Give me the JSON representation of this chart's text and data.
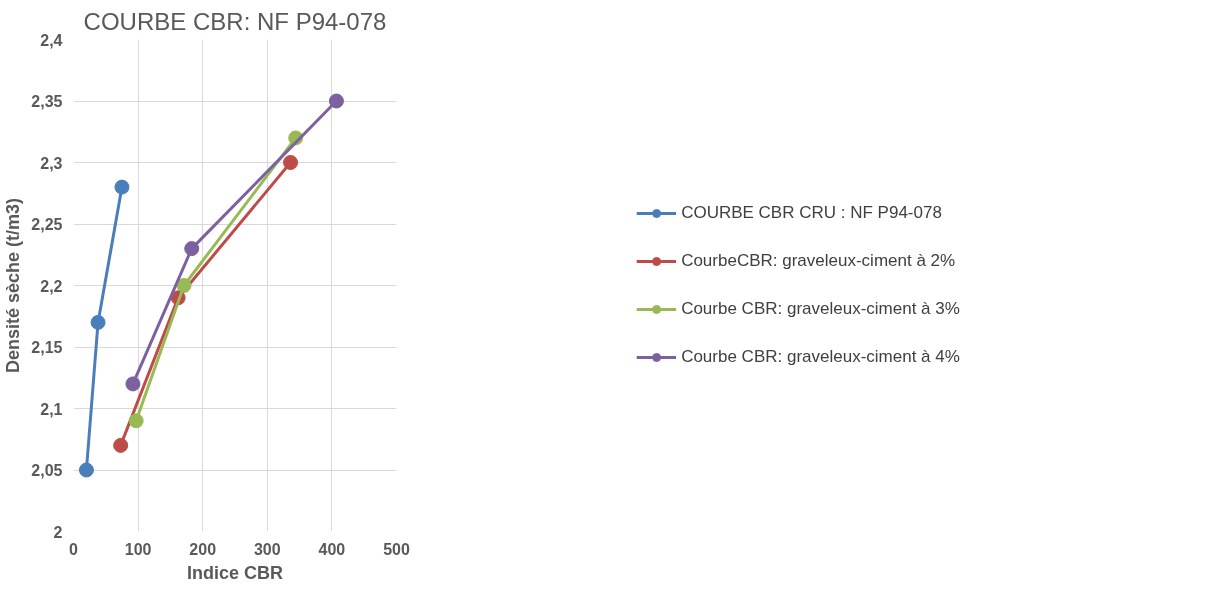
{
  "chart_data": {
    "type": "line",
    "title": "COURBE CBR: NF P94-078",
    "xlabel": "Indice CBR",
    "ylabel": "Densité sèche (t/m3)",
    "xlim": [
      0,
      500
    ],
    "xticks": [
      0,
      100,
      200,
      300,
      400,
      500
    ],
    "ylim": [
      2,
      2.4
    ],
    "yticks": [
      {
        "value": 2,
        "label": "2"
      },
      {
        "value": 2.05,
        "label": "2,05"
      },
      {
        "value": 2.1,
        "label": "2,1"
      },
      {
        "value": 2.15,
        "label": "2,15"
      },
      {
        "value": 2.2,
        "label": "2,2"
      },
      {
        "value": 2.25,
        "label": "2,25"
      },
      {
        "value": 2.3,
        "label": "2,3"
      },
      {
        "value": 2.35,
        "label": "2,35"
      },
      {
        "value": 2.4,
        "label": "2,4"
      }
    ],
    "grid": true,
    "legend": "right",
    "marker": "circle",
    "line_style": "solid",
    "series": [
      {
        "name": "COURBE CBR CRU : NF P94-078",
        "color": "#4a7ebb",
        "x": [
          20,
          38,
          75
        ],
        "values": [
          2.05,
          2.17,
          2.28
        ]
      },
      {
        "name": "CourbeCBR: graveleux-ciment à 2%",
        "color": "#be4b48",
        "x": [
          73,
          162,
          336
        ],
        "values": [
          2.07,
          2.19,
          2.3
        ]
      },
      {
        "name": "Courbe CBR: graveleux-ciment à 3%",
        "color": "#98b954",
        "x": [
          97,
          171,
          344
        ],
        "values": [
          2.09,
          2.2,
          2.32
        ]
      },
      {
        "name": "Courbe CBR: graveleux-ciment à 4%",
        "color": "#7d60a0",
        "x": [
          92,
          183,
          407
        ],
        "values": [
          2.12,
          2.23,
          2.35
        ]
      }
    ]
  }
}
